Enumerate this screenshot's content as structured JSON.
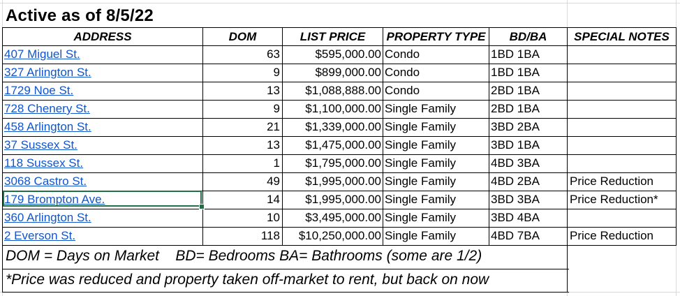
{
  "title": "Active as of 8/5/22",
  "headers": {
    "address": "ADDRESS",
    "dom": "DOM",
    "list_price": "LIST PRICE",
    "property_type": "PROPERTY TYPE",
    "bd_ba": "BD/BA",
    "special_notes": "SPECIAL NOTES"
  },
  "rows": [
    {
      "address": "407 Miguel St.",
      "dom": "63",
      "price": "$595,000.00",
      "type": "Condo",
      "bdba": "1BD 1BA",
      "notes": ""
    },
    {
      "address": "327 Arlington St.",
      "dom": "9",
      "price": "$899,000.00",
      "type": "Condo",
      "bdba": "1BD 1BA",
      "notes": ""
    },
    {
      "address": "1729 Noe St.",
      "dom": "13",
      "price": "$1,088,888.00",
      "type": "Condo",
      "bdba": "2BD 1BA",
      "notes": ""
    },
    {
      "address": "728 Chenery St.",
      "dom": "9",
      "price": "$1,100,000.00",
      "type": "Single Family",
      "bdba": "2BD 1BA",
      "notes": ""
    },
    {
      "address": "458 Arlington St.",
      "dom": "21",
      "price": "$1,339,000.00",
      "type": "Single Family",
      "bdba": "3BD 2BA",
      "notes": ""
    },
    {
      "address": "37 Sussex St.",
      "dom": "13",
      "price": "$1,475,000.00",
      "type": "Single Family",
      "bdba": "3BD 1BA",
      "notes": ""
    },
    {
      "address": "118 Sussex St.",
      "dom": "1",
      "price": "$1,795,000.00",
      "type": "Single Family",
      "bdba": "4BD 3BA",
      "notes": ""
    },
    {
      "address": "3068 Castro St.",
      "dom": "49",
      "price": "$1,995,000.00",
      "type": "Single Family",
      "bdba": "4BD 2BA",
      "notes": "Price Reduction"
    },
    {
      "address": "179 Brompton Ave.",
      "dom": "14",
      "price": "$1,995,000.00",
      "type": "Single Family",
      "bdba": "3BD 3BA",
      "notes": "Price Reduction*"
    },
    {
      "address": "360 Arlington St.",
      "dom": "10",
      "price": "$3,495,000.00",
      "type": "Single Family",
      "bdba": "3BD 4BA",
      "notes": ""
    },
    {
      "address": "2 Everson St.",
      "dom": "118",
      "price": "$10,250,000.00",
      "type": "Single Family",
      "bdba": "4BD 7BA",
      "notes": "Price Reduction"
    }
  ],
  "footnotes": {
    "legend_dom": "DOM = Days on Market",
    "legend_bdba": "BD= Bedrooms BA= Bathrooms (some are 1/2)",
    "price_note": "*Price was reduced and property taken off-market to rent, but back on now"
  },
  "colors": {
    "link": "#1155cc",
    "selection": "#1e7145",
    "gridline": "#d9d9d9"
  }
}
